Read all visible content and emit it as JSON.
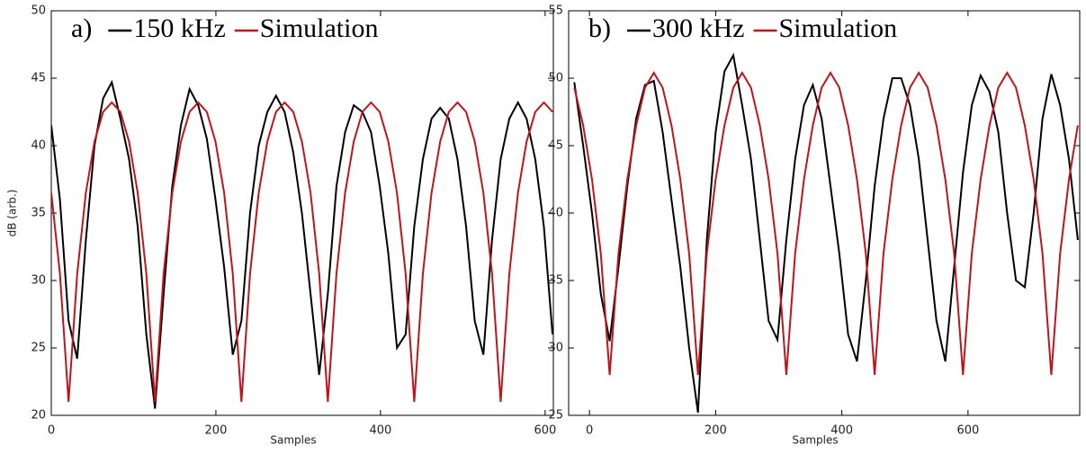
{
  "chart_data": [
    {
      "type": "line",
      "panel_label": "a)",
      "xlabel": "Samples",
      "ylabel": "dB  (arb.)",
      "x": [
        0,
        10.5,
        21,
        31.5,
        42,
        52.5,
        63,
        73.5,
        84,
        94.5,
        105,
        115.5,
        126,
        136.5,
        147,
        157.5,
        168,
        178.5,
        189,
        199.5,
        210,
        220.5,
        231,
        241.5,
        252,
        262.5,
        273,
        283.5,
        294,
        304.5,
        315,
        325.5,
        336,
        346.5,
        357,
        367.5,
        378,
        388.5,
        399,
        409.5,
        420,
        430.5,
        441,
        451.5,
        462,
        472.5,
        483,
        493.5,
        504,
        514.5,
        525,
        535.5,
        546,
        556.5,
        567,
        577.5,
        588,
        598.5,
        609
      ],
      "xlim": [
        0,
        610
      ],
      "xticks": [
        0,
        200,
        400,
        600
      ],
      "ylim": [
        20,
        50
      ],
      "yticks": [
        20,
        25,
        30,
        35,
        40,
        45,
        50
      ],
      "series": [
        {
          "name": "150 kHz",
          "color": "#000000",
          "values": [
            41.5,
            36,
            27,
            24.2,
            33,
            40,
            43.5,
            44.7,
            42,
            39,
            34,
            26,
            20.5,
            29,
            37,
            41.5,
            44.2,
            43,
            40.5,
            36,
            31,
            24.5,
            27,
            35,
            40,
            42.5,
            43.7,
            42.5,
            39.5,
            35,
            29,
            23,
            29,
            37,
            41,
            43,
            42.5,
            41,
            37,
            32,
            25,
            26,
            34,
            39,
            42,
            42.8,
            42,
            39,
            34,
            27,
            24.5,
            33,
            39,
            42,
            43.2,
            42,
            39,
            34,
            26
          ]
        },
        {
          "name": "Simulation",
          "color": "#c0141c",
          "values": [
            36.5,
            30.5,
            21,
            30.5,
            36.5,
            40.3,
            42.5,
            43.2,
            42.5,
            40.3,
            36.5,
            30.5,
            21,
            30.5,
            36.5,
            40.3,
            42.5,
            43.2,
            42.5,
            40.3,
            36.5,
            30.5,
            21,
            30.5,
            36.5,
            40.3,
            42.5,
            43.2,
            42.5,
            40.3,
            36.5,
            30.5,
            21,
            30.5,
            36.5,
            40.3,
            42.5,
            43.2,
            42.5,
            40.3,
            36.5,
            30.5,
            21,
            30.5,
            36.5,
            40.3,
            42.5,
            43.2,
            42.5,
            40.3,
            36.5,
            30.5,
            21,
            30.5,
            36.5,
            40.3,
            42.5,
            43.2,
            42.5
          ]
        }
      ]
    },
    {
      "type": "line",
      "panel_label": "b)",
      "xlabel": "Samples",
      "x": [
        -24,
        -10,
        4,
        18,
        32,
        46,
        60,
        74,
        88,
        102,
        116,
        130,
        144,
        158,
        172,
        186,
        200,
        214,
        228,
        242,
        256,
        270,
        284,
        298,
        312,
        326,
        340,
        354,
        368,
        382,
        396,
        410,
        424,
        438,
        452,
        466,
        480,
        494,
        508,
        522,
        536,
        550,
        564,
        578,
        592,
        606,
        620,
        634,
        648,
        662,
        676,
        690,
        704,
        718,
        732,
        746,
        760,
        774
      ],
      "xlim": [
        -33,
        777
      ],
      "xticks": [
        0,
        200,
        400,
        600
      ],
      "ylim": [
        25,
        55
      ],
      "yticks": [
        25,
        30,
        35,
        40,
        45,
        50,
        55
      ],
      "series": [
        {
          "name": "300 kHz",
          "color": "#000000",
          "values": [
            49.7,
            45,
            40,
            34,
            30.5,
            36,
            42,
            47,
            49.5,
            49.8,
            46,
            41,
            36,
            30,
            25.2,
            38,
            46,
            50.5,
            51.7,
            48,
            44,
            38,
            32,
            30.6,
            38,
            44,
            48,
            49.5,
            47,
            42,
            37,
            31,
            29,
            35,
            42,
            47,
            50,
            50,
            48,
            44,
            38,
            32,
            29,
            36,
            43,
            48,
            50.2,
            49,
            46,
            40,
            35,
            34.5,
            40,
            47,
            50.3,
            48,
            44,
            38
          ]
        },
        {
          "name": "Simulation",
          "color": "#c0141c",
          "values": [
            49.3,
            46.5,
            42.5,
            37,
            28,
            37,
            42.5,
            46.5,
            49.3,
            50.4,
            49.3,
            46.5,
            42.5,
            37,
            28,
            37,
            42.5,
            46.5,
            49.3,
            50.4,
            49.3,
            46.5,
            42.5,
            37,
            28,
            37,
            42.5,
            46.5,
            49.3,
            50.4,
            49.3,
            46.5,
            42.5,
            37,
            28,
            37,
            42.5,
            46.5,
            49.3,
            50.4,
            49.3,
            46.5,
            42.5,
            37,
            28,
            37,
            42.5,
            46.5,
            49.3,
            50.4,
            49.3,
            46.5,
            42.5,
            37,
            28,
            37,
            42.5,
            46.5
          ]
        }
      ]
    }
  ]
}
